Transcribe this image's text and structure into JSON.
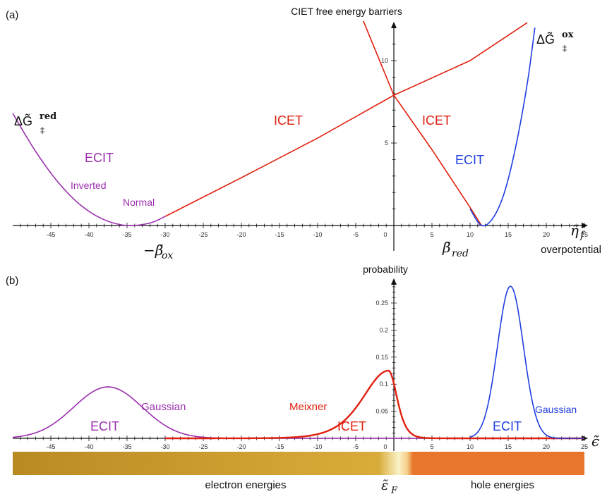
{
  "panel_a": {
    "label": "(a)",
    "title": "CIET free energy barriers",
    "x_axis_symbol": "η̃",
    "x_axis_subscript": "f",
    "x_axis_caption": "overpotential",
    "neg_beta_ox_prefix": "−β̃",
    "neg_beta_ox_sub": "ox",
    "beta_red_symbol": "β̃",
    "beta_red_sub": "red",
    "dG_red_prefix": "ΔG̃",
    "dG_red_sup": "red",
    "dG_red_sub": "‡",
    "dG_ox_prefix": "ΔG̃",
    "dG_ox_sup": "ox",
    "dG_ox_sub": "‡",
    "labels": {
      "ecit_left": "ECIT",
      "inverted": "Inverted",
      "normal": "Normal",
      "icet_left": "ICET",
      "icet_right": "ICET",
      "ecit_right": "ECIT"
    }
  },
  "panel_b": {
    "label": "(b)",
    "y_title": "probability",
    "x_axis_symbol": "ϵ̃",
    "fermi_symbol": "ε̃",
    "fermi_sub": "F",
    "labels": {
      "gaussian_left": "Gaussian",
      "ecit_left": "ECIT",
      "meixner": "Meixner",
      "icet": "ICET",
      "ecit_right": "ECIT",
      "gaussian_right": "Gaussian"
    },
    "electron_energies": "electron energies",
    "hole_energies": "hole energies"
  },
  "colors": {
    "purple": "#9b2fae",
    "red": "#e0200f",
    "blue": "#1f3ee0",
    "axis": "#111111",
    "band_electron": "#c89a2a",
    "band_fermi": "#f8f0c0",
    "band_hole": "#e8762c"
  },
  "chart_data": [
    {
      "type": "line",
      "title": "CIET free energy barriers",
      "xlabel": "overpotential",
      "ylabel": "",
      "xlim": [
        -50,
        25
      ],
      "ylim": [
        0,
        12
      ],
      "x_ticks": [
        -45,
        -40,
        -35,
        -30,
        -25,
        -20,
        -15,
        -10,
        -5,
        0,
        5,
        10,
        15,
        20,
        25
      ],
      "y_ticks": [
        5,
        10
      ],
      "grid": false,
      "series": [
        {
          "name": "ECIT",
          "color": "#9b2fae",
          "x": [
            -50,
            -47,
            -44,
            -41,
            -38,
            -35,
            -32,
            -30
          ],
          "y": [
            6.8,
            4.5,
            2.6,
            1.2,
            0.35,
            0.0,
            0.15,
            0.55
          ]
        },
        {
          "name": "ICET",
          "color": "#e0200f",
          "x": [
            -30,
            -20,
            -10,
            0,
            10,
            17.5
          ],
          "y": [
            0.55,
            2.9,
            5.3,
            7.9,
            10.0,
            12.3
          ]
        },
        {
          "name": "ICET",
          "color": "#e0200f",
          "x": [
            -4,
            0,
            5,
            10,
            11.5
          ],
          "y": [
            12.4,
            7.9,
            4.6,
            1.1,
            0.0
          ]
        },
        {
          "name": "ECIT",
          "color": "#1f3ee0",
          "x": [
            10,
            11.5,
            13,
            14.5,
            16,
            17.5,
            18.5
          ],
          "y": [
            1.0,
            0.0,
            0.45,
            2.0,
            4.8,
            8.6,
            12.0
          ]
        }
      ]
    },
    {
      "type": "line",
      "title": "",
      "xlabel": "",
      "ylabel": "probability",
      "xlim": [
        -50,
        25
      ],
      "ylim": [
        0,
        0.29
      ],
      "x_ticks": [
        -45,
        -40,
        -35,
        -30,
        -25,
        -20,
        -15,
        -10,
        -5,
        0,
        5,
        10,
        15,
        20,
        25
      ],
      "y_ticks": [
        0.05,
        0.1,
        0.15,
        0.2,
        0.25
      ],
      "grid": false,
      "series": [
        {
          "name": "Gaussian",
          "color": "#9b2fae",
          "kind": "gaussian",
          "mu": -37.5,
          "sigma": 4.5,
          "peak": 0.095,
          "x_from": -50,
          "x_to": 25
        },
        {
          "name": "Meixner",
          "color": "#e0200f",
          "kind": "meixner",
          "mode": -0.7,
          "peak": 0.125,
          "left_decay": 4.5,
          "right_decay": 1.5,
          "x_from": -30,
          "x_to": 25
        },
        {
          "name": "Gaussian",
          "color": "#1f3ee0",
          "kind": "gaussian",
          "mu": 15.3,
          "sigma": 1.7,
          "peak": 0.281,
          "x_from": 10,
          "x_to": 25
        }
      ]
    }
  ]
}
